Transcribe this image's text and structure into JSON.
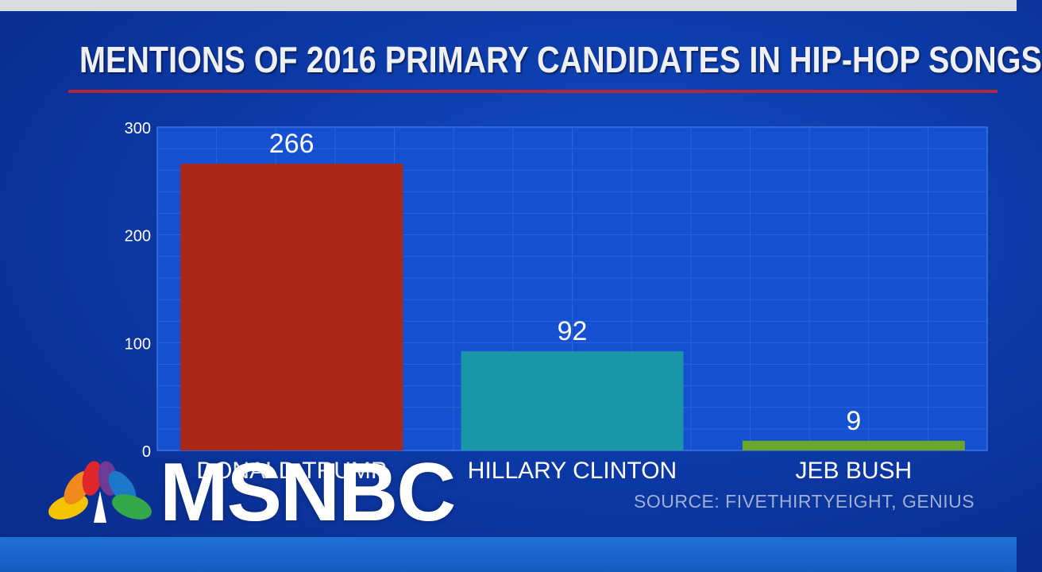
{
  "chart_data": {
    "type": "bar",
    "title": "MENTIONS OF 2016 PRIMARY CANDIDATES IN HIP-HOP SONGS",
    "categories": [
      "DONALD TRUMP",
      "HILLARY CLINTON",
      "JEB BUSH"
    ],
    "values": [
      266,
      92,
      9
    ],
    "data_labels": [
      "266",
      "92",
      "9"
    ],
    "colors": [
      "#a82717",
      "#1a96a8",
      "#6aa62a"
    ],
    "ylim": [
      0,
      300
    ],
    "yticks": [
      0,
      100,
      200,
      300
    ],
    "ytick_labels": [
      "0",
      "100",
      "200",
      "300"
    ],
    "xlabel": "",
    "ylabel": "",
    "grid": true
  },
  "source": "SOURCE: FIVETHIRTYEIGHT, GENIUS",
  "logo": {
    "text": "MSNBC",
    "icon": "nbc-peacock-icon"
  }
}
